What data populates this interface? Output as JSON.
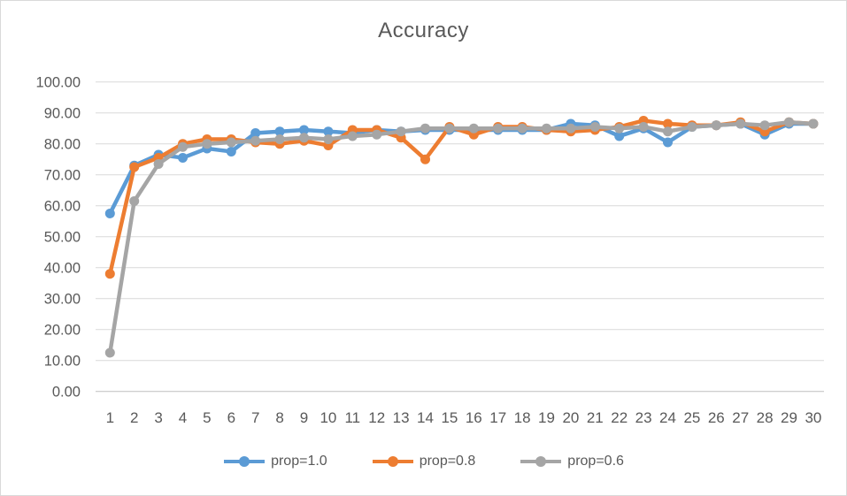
{
  "chart_data": {
    "type": "line",
    "title": "Accuracy",
    "x": [
      1,
      2,
      3,
      4,
      5,
      6,
      7,
      8,
      9,
      10,
      11,
      12,
      13,
      14,
      15,
      16,
      17,
      18,
      19,
      20,
      21,
      22,
      23,
      24,
      25,
      26,
      27,
      28,
      29,
      30
    ],
    "series": [
      {
        "name": "prop=1.0",
        "color": "#5B9BD5",
        "values": [
          57.5,
          73,
          76.5,
          75.5,
          78.5,
          77.5,
          83.5,
          84,
          84.5,
          84,
          83.5,
          84.5,
          84,
          84.5,
          84.5,
          84.5,
          84.5,
          84.5,
          84.5,
          86.5,
          86,
          82.5,
          85,
          80.5,
          85.5,
          86,
          86.5,
          83,
          86.5,
          86.5
        ]
      },
      {
        "name": "prop=0.8",
        "color": "#ED7D31",
        "values": [
          38,
          72.5,
          75.5,
          80,
          81.5,
          81.5,
          80.5,
          80,
          81,
          79.5,
          84.5,
          84.5,
          82,
          75,
          85.5,
          83,
          85.5,
          85.5,
          84.5,
          84,
          84.5,
          85.5,
          87.5,
          86.5,
          86,
          86,
          87,
          84,
          87,
          86.5
        ]
      },
      {
        "name": "prop=0.6",
        "color": "#A5A5A5",
        "values": [
          12.5,
          61.5,
          73.5,
          79,
          80,
          80.5,
          81,
          81.5,
          82,
          81.5,
          82.5,
          83,
          84,
          85,
          85,
          85,
          85,
          85,
          85,
          85,
          85.5,
          85,
          85.5,
          84,
          85.5,
          86,
          86.5,
          86,
          87,
          86.5
        ]
      }
    ],
    "ylim": [
      0,
      100
    ],
    "y_ticks": [
      "0.00",
      "10.00",
      "20.00",
      "30.00",
      "40.00",
      "50.00",
      "60.00",
      "70.00",
      "80.00",
      "90.00",
      "100.00"
    ],
    "grid": "horizontal",
    "legend_position": "bottom"
  },
  "colors": {
    "text": "#595959",
    "gridline": "#D9D9D9",
    "axis_line": "#BFBFBF",
    "background": "#FFFFFF"
  }
}
